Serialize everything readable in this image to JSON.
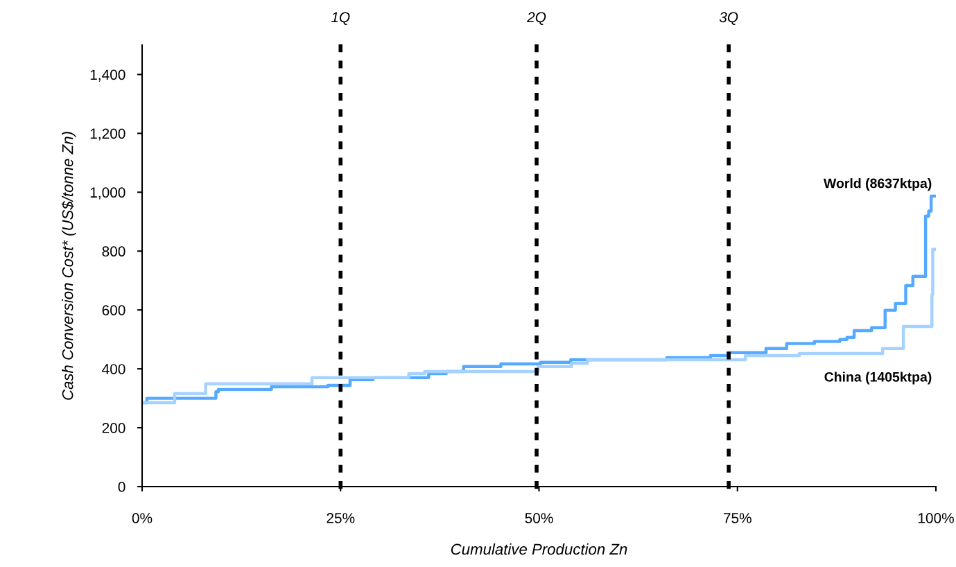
{
  "chart_data": {
    "type": "step",
    "xlabel": "Cumulative Production Zn",
    "ylabel": "Cash Conversion Cost* (US$/tonne Zn)",
    "xlim": [
      0,
      100
    ],
    "ylim": [
      0,
      1500
    ],
    "xticks": [
      {
        "value": 0,
        "label": "0%"
      },
      {
        "value": 25,
        "label": "25%"
      },
      {
        "value": 50,
        "label": "50%"
      },
      {
        "value": 75,
        "label": "75%"
      },
      {
        "value": 100,
        "label": "100%"
      }
    ],
    "yticks": [
      0,
      200,
      400,
      600,
      800,
      {
        "value": 1000,
        "label": "1,000"
      },
      {
        "value": 1200,
        "label": "1,200"
      },
      {
        "value": 1400,
        "label": "1,400"
      }
    ],
    "grid": false,
    "legend": false,
    "line_style": "solid",
    "marker": "none",
    "ref_lines": [
      {
        "axis": "x",
        "value": 25,
        "label": "1Q",
        "color": "#000000",
        "line_style": "dashed"
      },
      {
        "axis": "x",
        "value": 49.7,
        "label": "2Q",
        "color": "#000000",
        "line_style": "dashed"
      },
      {
        "axis": "x",
        "value": 73.9,
        "label": "3Q",
        "color": "#000000",
        "line_style": "dashed"
      }
    ],
    "series": [
      {
        "name": "World (8637ktpa)",
        "color": "#55aaff",
        "x": [
          0,
          0.6,
          9.3,
          9.6,
          16.3,
          23.4,
          26.2,
          29.1,
          36.1,
          38.3,
          40.5,
          45.2,
          50.2,
          54.0,
          66.1,
          71.6,
          73.8,
          78.6,
          81.2,
          84.7,
          87.9,
          88.8,
          89.7,
          91.9,
          93.6,
          94.9,
          96.2,
          97.1,
          98.7,
          99.1,
          99.4,
          100
        ],
        "values": [
          285,
          300,
          322,
          330,
          339,
          344,
          363,
          370,
          384,
          391,
          408,
          417,
          422,
          431,
          438,
          445,
          455,
          469,
          486,
          493,
          500,
          507,
          530,
          540,
          599,
          622,
          683,
          714,
          919,
          936,
          987,
          987
        ]
      },
      {
        "name": "China (1405ktpa)",
        "color": "#a5d2ff",
        "x": [
          0,
          4.1,
          8.0,
          21.4,
          33.6,
          35.6,
          49.9,
          54.1,
          56.1,
          76.0,
          82.8,
          93.3,
          95.9,
          99.5,
          99.6,
          100
        ],
        "values": [
          285,
          316,
          349,
          370,
          384,
          391,
          408,
          419,
          431,
          445,
          452,
          469,
          544,
          653,
          806,
          806
        ]
      }
    ]
  }
}
